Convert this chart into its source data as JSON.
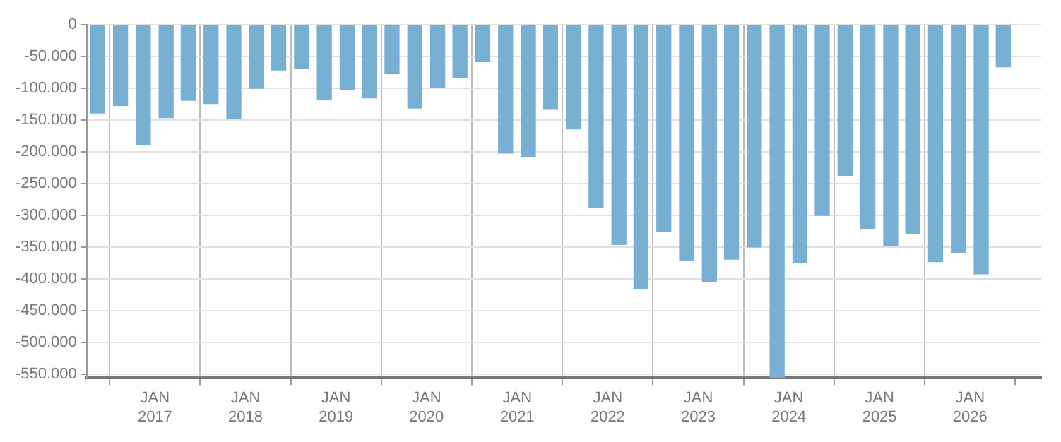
{
  "chart_data": {
    "type": "bar",
    "x": [
      "2016-05-15",
      "2016-08-15",
      "2016-11-15",
      "2017-02-15",
      "2017-05-15",
      "2017-08-15",
      "2017-11-15",
      "2018-02-15",
      "2018-05-15",
      "2018-08-15",
      "2018-11-15",
      "2019-02-15",
      "2019-05-15",
      "2019-08-15",
      "2019-11-15",
      "2020-02-15",
      "2020-05-15",
      "2020-08-15",
      "2020-11-15",
      "2021-02-15",
      "2021-05-15",
      "2021-08-15",
      "2021-11-15",
      "2022-02-15",
      "2022-05-15",
      "2022-08-15",
      "2022-11-15",
      "2023-02-15",
      "2023-05-15",
      "2023-08-15",
      "2023-11-15",
      "2024-02-15",
      "2024-05-15",
      "2024-08-15",
      "2024-11-15",
      "2025-02-15",
      "2025-05-15",
      "2025-08-15",
      "2025-11-15",
      "2026-02-15",
      "2026-05-15"
    ],
    "values": [
      -139000,
      -127000,
      -188000,
      -146000,
      -119000,
      -125000,
      -148000,
      -100000,
      -71000,
      -69000,
      -117000,
      -102000,
      -115000,
      -77000,
      -131000,
      -98000,
      -83000,
      -58000,
      -202000,
      -208000,
      -133000,
      -164000,
      -288000,
      -346000,
      -415000,
      -325000,
      -371000,
      -404000,
      -369000,
      -350000,
      -556000,
      -375000,
      -300000,
      -237000,
      -321000,
      -348000,
      -329000,
      -373000,
      -359000,
      -392000,
      -66000
    ],
    "color": "#78b0d4",
    "xlim": [
      "2016-04-01",
      "2026-10-15"
    ],
    "xticks": [
      {
        "value": "2017-01-01",
        "label": "JAN 2017"
      },
      {
        "value": "2018-01-01",
        "label": "JAN 2018"
      },
      {
        "value": "2019-01-01",
        "label": "JAN 2019"
      },
      {
        "value": "2020-01-01",
        "label": "JAN 2020"
      },
      {
        "value": "2021-01-01",
        "label": "JAN 2021"
      },
      {
        "value": "2022-01-01",
        "label": "JAN 2022"
      },
      {
        "value": "2023-01-01",
        "label": "JAN 2023"
      },
      {
        "value": "2024-01-01",
        "label": "JAN 2024"
      },
      {
        "value": "2025-01-01",
        "label": "JAN 2025"
      },
      {
        "value": "2026-01-01",
        "label": "JAN 2026"
      }
    ],
    "ylim": [
      -556000,
      0
    ],
    "yticks": [
      0,
      {
        "value": -50000,
        "label": "-50.000"
      },
      {
        "value": -100000,
        "label": "-100.000"
      },
      {
        "value": -150000,
        "label": "-150.000"
      },
      {
        "value": -200000,
        "label": "-200.000"
      },
      {
        "value": -250000,
        "label": "-250.000"
      },
      {
        "value": -300000,
        "label": "-300.000"
      },
      {
        "value": -350000,
        "label": "-350.000"
      },
      {
        "value": -400000,
        "label": "-400.000"
      },
      {
        "value": -450000,
        "label": "-450.000"
      },
      {
        "value": -500000,
        "label": "-500.000"
      },
      {
        "value": -550000,
        "label": "-550.000"
      }
    ],
    "grid": true
  }
}
